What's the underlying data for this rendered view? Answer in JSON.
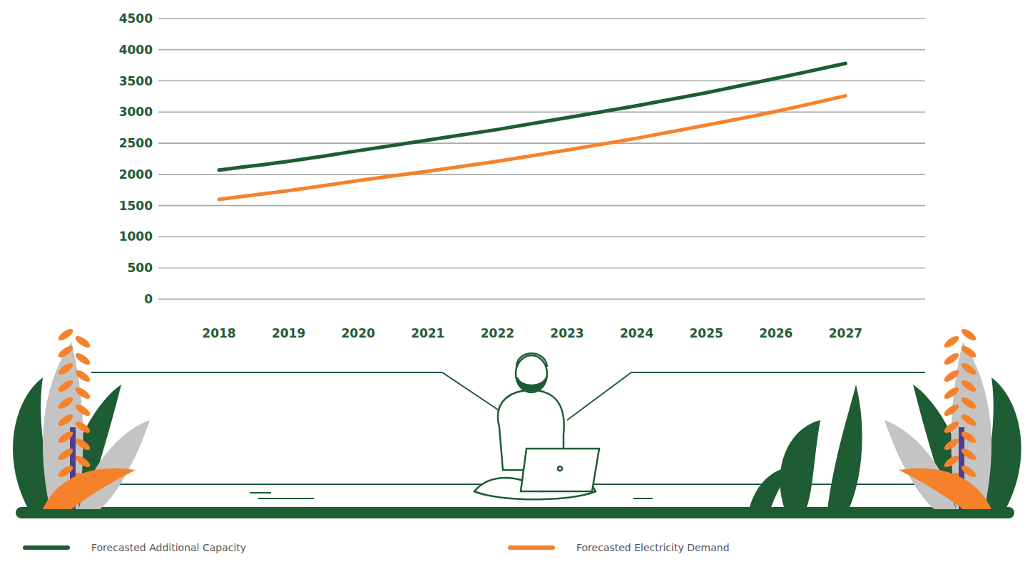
{
  "chart_data": {
    "type": "line",
    "categories": [
      "2018",
      "2019",
      "2020",
      "2021",
      "2022",
      "2023",
      "2024",
      "2025",
      "2026",
      "2027"
    ],
    "series": [
      {
        "name": "Forecasted Additional Capacity",
        "color": "#1e5c34",
        "values": [
          2070,
          2210,
          2380,
          2550,
          2720,
          2910,
          3100,
          3310,
          3540,
          3780
        ]
      },
      {
        "name": "Forecasted Electricity Demand",
        "color": "#f5822a",
        "values": [
          1600,
          1740,
          1900,
          2050,
          2210,
          2390,
          2580,
          2790,
          3010,
          3260
        ]
      }
    ],
    "ylim": [
      0,
      4500
    ],
    "yticks": [
      0,
      500,
      1000,
      1500,
      2000,
      2500,
      3000,
      3500,
      4000,
      4500
    ],
    "grid": true,
    "legend": "bottom"
  }
}
